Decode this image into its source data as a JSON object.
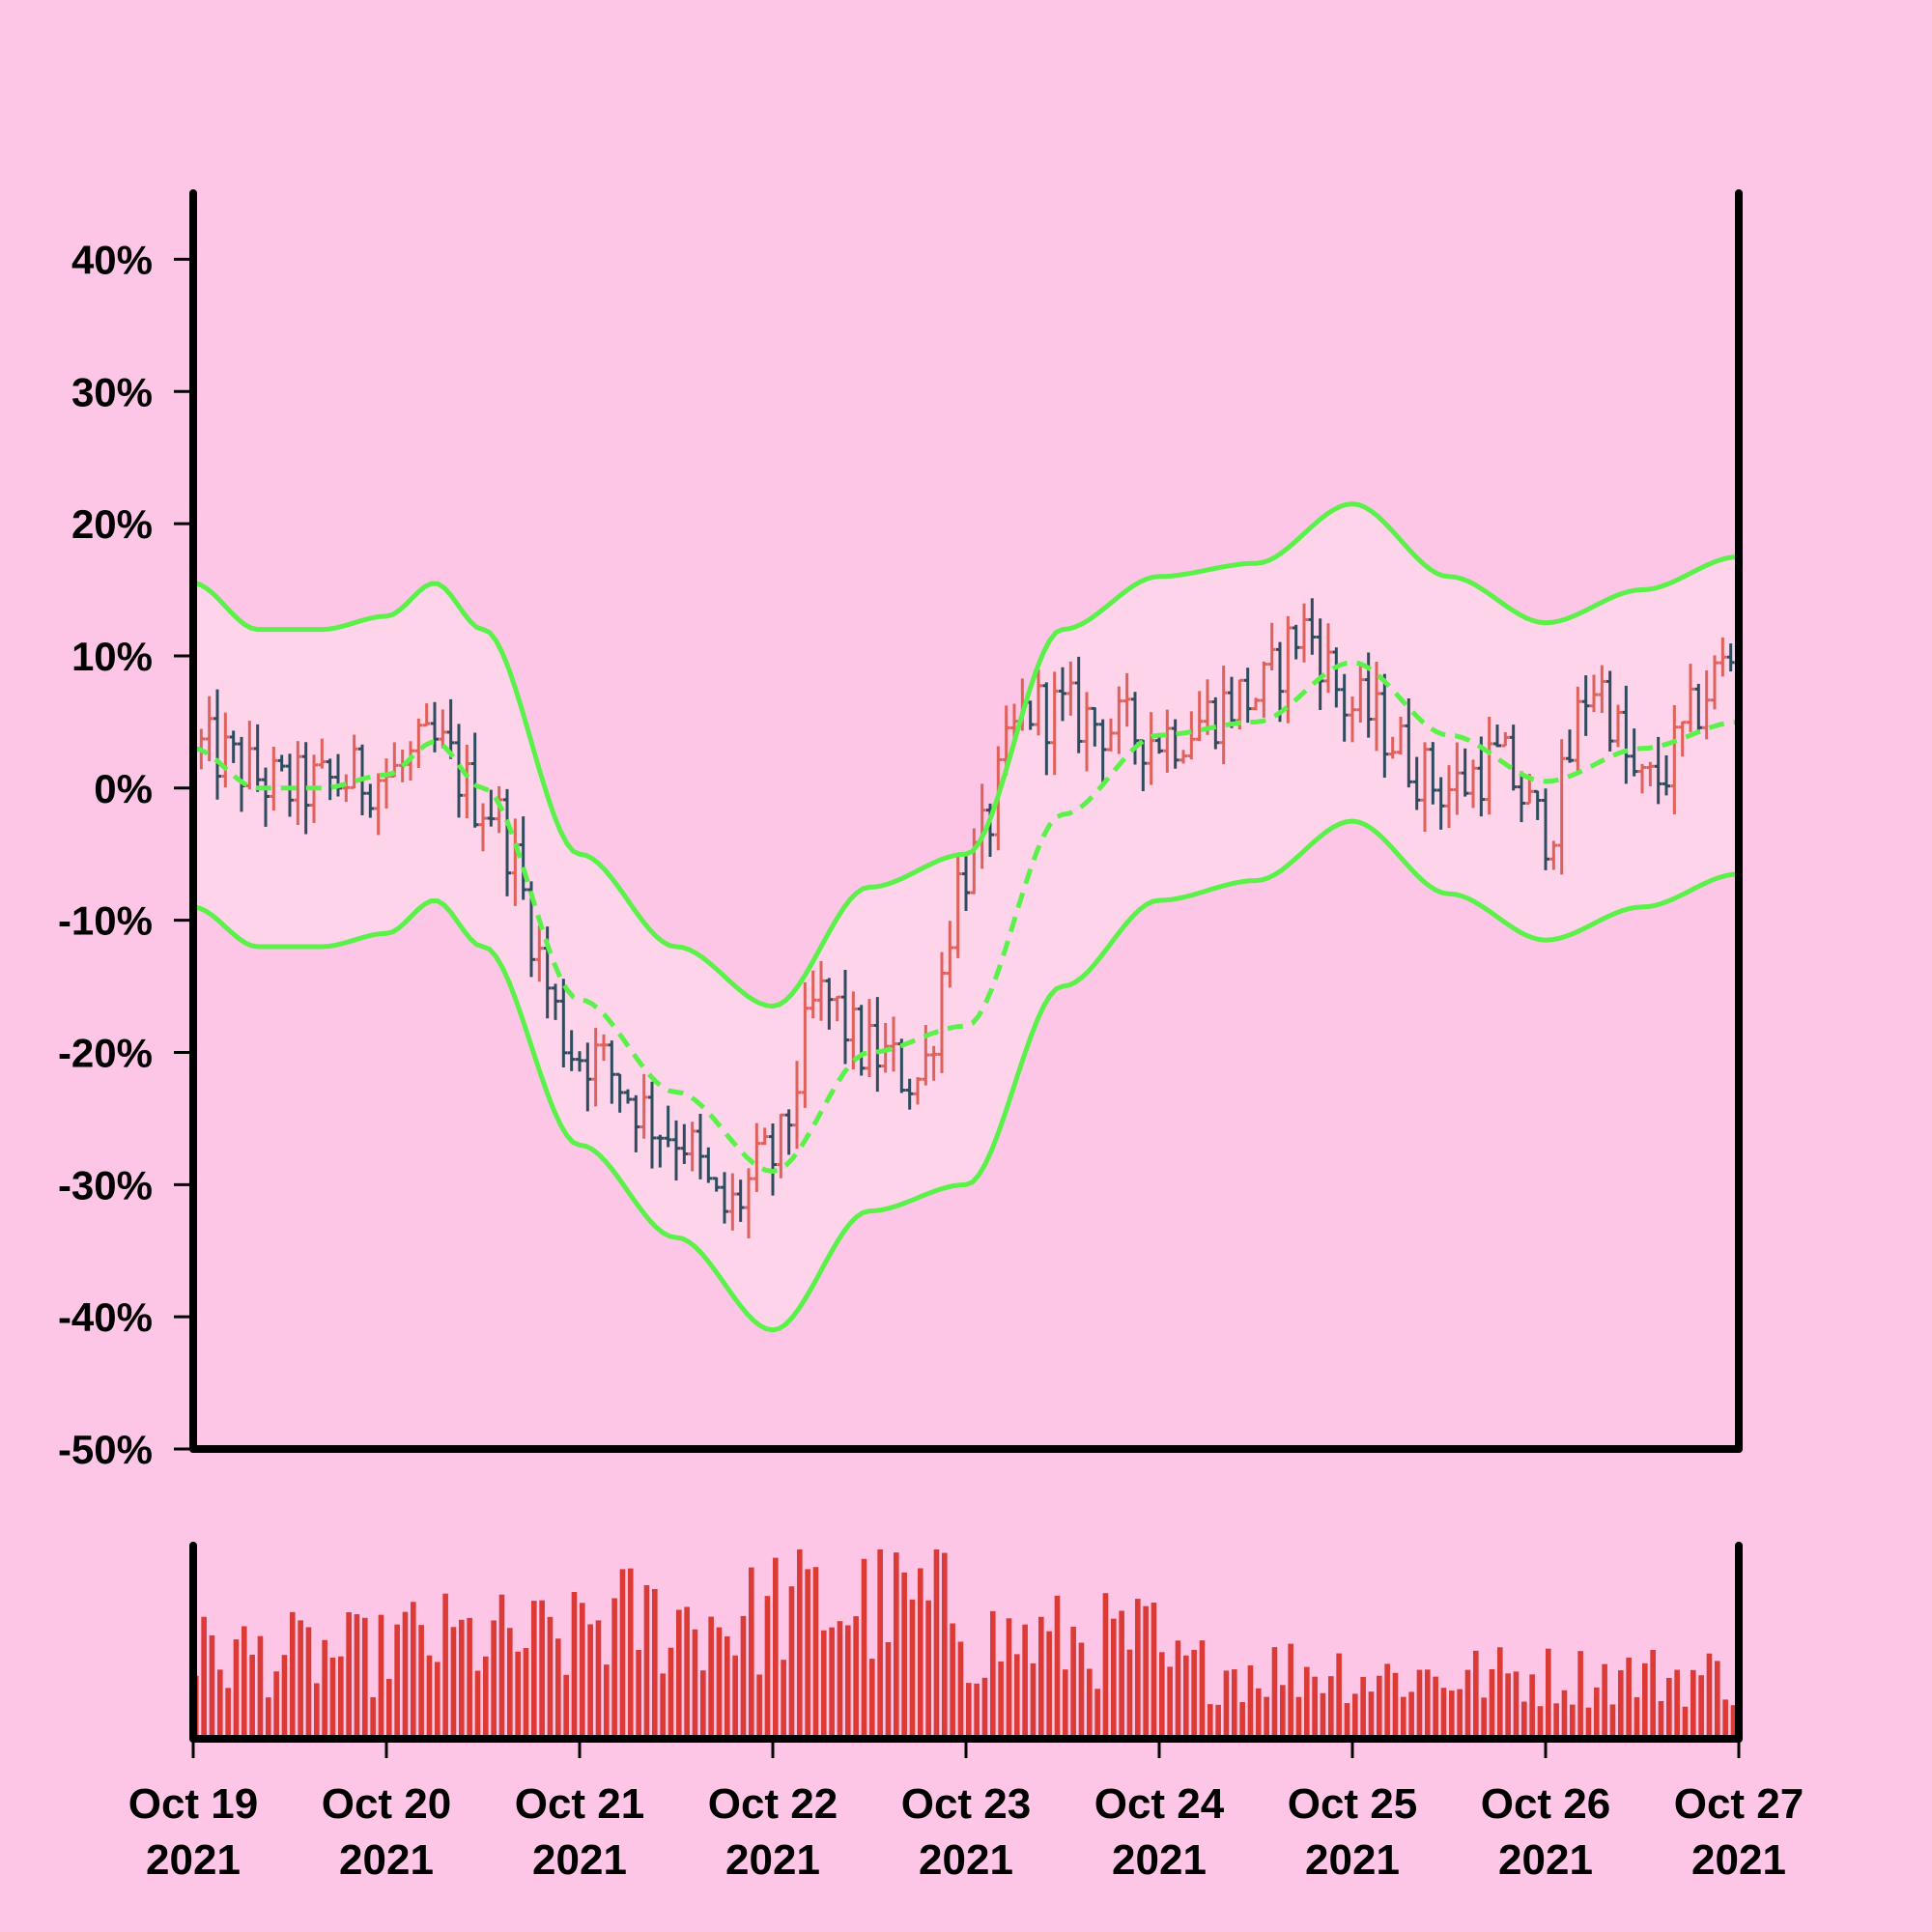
{
  "colors": {
    "background": "#fdc6e6",
    "band_fill": "#fdd4ea",
    "band_line": "#5cf04a",
    "up_bar": "#e0605a",
    "down_bar": "#2f4b5e",
    "volume_bar": "#dc3a35",
    "axis": "#000000"
  },
  "chart_data": {
    "type": "ohlc",
    "price_axis": {
      "ylim": [
        -50,
        45
      ],
      "tick_labels": [
        "40%",
        "30%",
        "20%",
        "10%",
        "0%",
        "-10%",
        "-20%",
        "-30%",
        "-40%",
        "-50%"
      ]
    },
    "x_axis": {
      "xlim": [
        "2021-10-19",
        "2021-10-27"
      ],
      "tick_labels": [
        {
          "day": "Oct 19",
          "year": "2021"
        },
        {
          "day": "Oct 20",
          "year": "2021"
        },
        {
          "day": "Oct 21",
          "year": "2021"
        },
        {
          "day": "Oct 22",
          "year": "2021"
        },
        {
          "day": "Oct 23",
          "year": "2021"
        },
        {
          "day": "Oct 24",
          "year": "2021"
        },
        {
          "day": "Oct 25",
          "year": "2021"
        },
        {
          "day": "Oct 26",
          "year": "2021"
        },
        {
          "day": "Oct 27",
          "year": "2021"
        }
      ]
    },
    "price_path": [
      [
        "2021-10-19",
        3
      ],
      [
        "2021-10-19 12:00",
        0
      ],
      [
        "2021-10-20",
        1
      ],
      [
        "2021-10-20 06:00",
        3
      ],
      [
        "2021-10-20 12:00",
        -1
      ],
      [
        "2021-10-21",
        -20
      ],
      [
        "2021-10-21 12:00",
        -26
      ],
      [
        "2021-10-21 18:00",
        -32
      ],
      [
        "2021-10-22",
        -28
      ],
      [
        "2021-10-22 06:00",
        -16
      ],
      [
        "2021-10-22 12:00",
        -20
      ],
      [
        "2021-10-22 18:00",
        -22
      ],
      [
        "2021-10-23",
        -6
      ],
      [
        "2021-10-23 08:00",
        6
      ],
      [
        "2021-10-24",
        4
      ],
      [
        "2021-10-24 12:00",
        7
      ],
      [
        "2021-10-24 18:00",
        12
      ],
      [
        "2021-10-25",
        6
      ],
      [
        "2021-10-25 12:00",
        0
      ],
      [
        "2021-10-25 18:00",
        2
      ],
      [
        "2021-10-26",
        -3
      ],
      [
        "2021-10-26 06:00",
        8
      ],
      [
        "2021-10-26 12:00",
        0
      ],
      [
        "2021-10-27",
        10
      ]
    ],
    "bollinger_bands": {
      "middle": [
        [
          "2021-10-19",
          3
        ],
        [
          "2021-10-19 08:00",
          0
        ],
        [
          "2021-10-19 16:00",
          0
        ],
        [
          "2021-10-20",
          1
        ],
        [
          "2021-10-20 06:00",
          3.5
        ],
        [
          "2021-10-20 12:00",
          0
        ],
        [
          "2021-10-21",
          -16
        ],
        [
          "2021-10-21 12:00",
          -23
        ],
        [
          "2021-10-22",
          -29
        ],
        [
          "2021-10-22 12:00",
          -20
        ],
        [
          "2021-10-23",
          -18
        ],
        [
          "2021-10-23 12:00",
          -2
        ],
        [
          "2021-10-24",
          4
        ],
        [
          "2021-10-24 12:00",
          5
        ],
        [
          "2021-10-25",
          9.5
        ],
        [
          "2021-10-25 12:00",
          4
        ],
        [
          "2021-10-26",
          0.5
        ],
        [
          "2021-10-26 12:00",
          3
        ],
        [
          "2021-10-27",
          5
        ]
      ],
      "upper": [
        [
          "2021-10-19",
          15.5
        ],
        [
          "2021-10-19 08:00",
          12
        ],
        [
          "2021-10-19 16:00",
          12
        ],
        [
          "2021-10-20",
          13
        ],
        [
          "2021-10-20 06:00",
          15.5
        ],
        [
          "2021-10-20 12:00",
          12
        ],
        [
          "2021-10-21",
          -5
        ],
        [
          "2021-10-21 12:00",
          -12
        ],
        [
          "2021-10-22",
          -16.5
        ],
        [
          "2021-10-22 12:00",
          -7.5
        ],
        [
          "2021-10-23",
          -5
        ],
        [
          "2021-10-23 12:00",
          12
        ],
        [
          "2021-10-24",
          16
        ],
        [
          "2021-10-24 12:00",
          17
        ],
        [
          "2021-10-25",
          21.5
        ],
        [
          "2021-10-25 12:00",
          16
        ],
        [
          "2021-10-26",
          12.5
        ],
        [
          "2021-10-26 12:00",
          15
        ],
        [
          "2021-10-27",
          17.5
        ]
      ],
      "lower": [
        [
          "2021-10-19",
          -9
        ],
        [
          "2021-10-19 08:00",
          -12
        ],
        [
          "2021-10-19 16:00",
          -12
        ],
        [
          "2021-10-20",
          -11
        ],
        [
          "2021-10-20 06:00",
          -8.5
        ],
        [
          "2021-10-20 12:00",
          -12
        ],
        [
          "2021-10-21",
          -27
        ],
        [
          "2021-10-21 12:00",
          -34
        ],
        [
          "2021-10-22",
          -41
        ],
        [
          "2021-10-22 12:00",
          -32
        ],
        [
          "2021-10-23",
          -30
        ],
        [
          "2021-10-23 12:00",
          -15
        ],
        [
          "2021-10-24",
          -8.5
        ],
        [
          "2021-10-24 12:00",
          -7
        ],
        [
          "2021-10-25",
          -2.5
        ],
        [
          "2021-10-25 12:00",
          -8
        ],
        [
          "2021-10-26",
          -11.5
        ],
        [
          "2021-10-26 12:00",
          -9
        ],
        [
          "2021-10-27",
          -6.5
        ]
      ]
    },
    "volume_level_by_day": [
      0.6,
      0.7,
      0.85,
      0.95,
      0.7,
      0.5,
      0.45,
      0.45
    ]
  }
}
